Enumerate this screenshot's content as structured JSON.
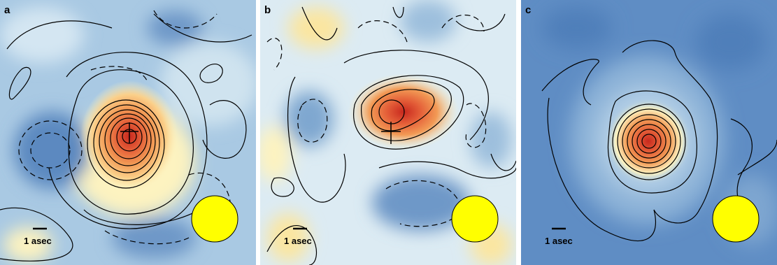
{
  "panels": [
    {
      "id": "a",
      "label": "a",
      "scale_label": "1 asec"
    },
    {
      "id": "b",
      "label": "b",
      "scale_label": "1 asec"
    },
    {
      "id": "c",
      "label": "c",
      "scale_label": "1 asec"
    }
  ],
  "colors": {
    "peak": "#c8281e",
    "mid": "#f29a55",
    "pale": "#fdf3c0",
    "light_blue": "#cfe3ef",
    "mid_blue": "#7fa7d0",
    "deep_blue": "#4a7ab5",
    "beam": "#ffff00",
    "contour": "#000000"
  },
  "beam": {
    "shape": "circle"
  }
}
